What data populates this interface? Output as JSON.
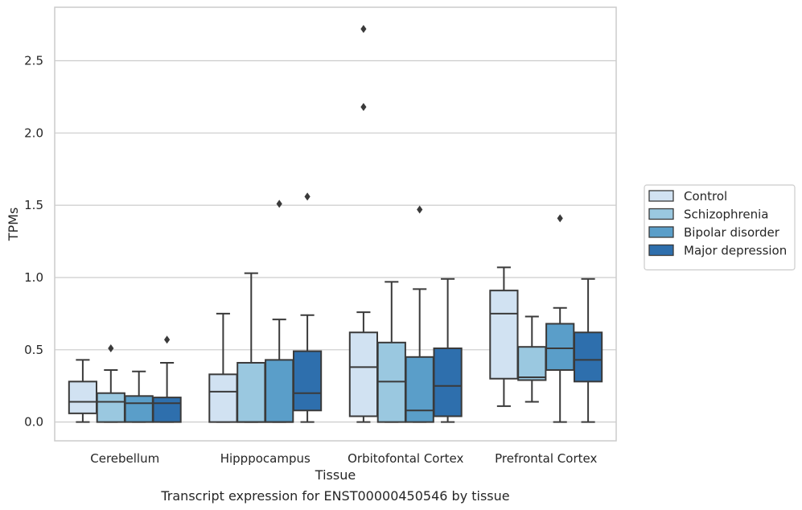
{
  "chart_data": {
    "type": "box",
    "xlabel": "Tissue",
    "ylabel": "TPMs",
    "caption": "Transcript expression for ENST00000450546 by tissue",
    "ylim": [
      -0.13,
      2.87
    ],
    "yticks": [
      0.0,
      0.5,
      1.0,
      1.5,
      2.0,
      2.5
    ],
    "ytick_labels": [
      "0.0",
      "0.5",
      "1.0",
      "1.5",
      "2.0",
      "2.5"
    ],
    "grid": "horizontal",
    "legend_position": "right",
    "categories": [
      "Cerebellum",
      "Hipppocampus",
      "Orbitofontal Cortex",
      "Prefrontal Cortex"
    ],
    "series": [
      {
        "name": "Control",
        "color": "#d1e2f2",
        "boxes": [
          {
            "whislo": 0.0,
            "q1": 0.06,
            "med": 0.14,
            "q3": 0.28,
            "whishi": 0.43,
            "fliers": []
          },
          {
            "whislo": 0.0,
            "q1": 0.0,
            "med": 0.21,
            "q3": 0.33,
            "whishi": 0.75,
            "fliers": []
          },
          {
            "whislo": 0.0,
            "q1": 0.04,
            "med": 0.38,
            "q3": 0.62,
            "whishi": 0.76,
            "fliers": [
              2.18,
              2.72
            ]
          },
          {
            "whislo": 0.11,
            "q1": 0.3,
            "med": 0.75,
            "q3": 0.91,
            "whishi": 1.07,
            "fliers": []
          }
        ]
      },
      {
        "name": "Schizophrenia",
        "color": "#9ac8e0",
        "boxes": [
          {
            "whislo": 0.0,
            "q1": 0.0,
            "med": 0.14,
            "q3": 0.2,
            "whishi": 0.36,
            "fliers": [
              0.51
            ]
          },
          {
            "whislo": 0.0,
            "q1": 0.0,
            "med": 0.0,
            "q3": 0.41,
            "whishi": 1.03,
            "fliers": []
          },
          {
            "whislo": 0.0,
            "q1": 0.0,
            "med": 0.28,
            "q3": 0.55,
            "whishi": 0.97,
            "fliers": []
          },
          {
            "whislo": 0.14,
            "q1": 0.29,
            "med": 0.31,
            "q3": 0.52,
            "whishi": 0.73,
            "fliers": []
          }
        ]
      },
      {
        "name": "Bipolar disorder",
        "color": "#5a9ec9",
        "boxes": [
          {
            "whislo": 0.0,
            "q1": 0.0,
            "med": 0.13,
            "q3": 0.18,
            "whishi": 0.35,
            "fliers": []
          },
          {
            "whislo": 0.0,
            "q1": 0.0,
            "med": 0.0,
            "q3": 0.43,
            "whishi": 0.71,
            "fliers": [
              1.51
            ]
          },
          {
            "whislo": 0.0,
            "q1": 0.0,
            "med": 0.08,
            "q3": 0.45,
            "whishi": 0.92,
            "fliers": [
              1.47
            ]
          },
          {
            "whislo": 0.0,
            "q1": 0.36,
            "med": 0.51,
            "q3": 0.68,
            "whishi": 0.79,
            "fliers": [
              1.41
            ]
          }
        ]
      },
      {
        "name": "Major depression",
        "color": "#2e6fad",
        "boxes": [
          {
            "whislo": 0.0,
            "q1": 0.0,
            "med": 0.13,
            "q3": 0.17,
            "whishi": 0.41,
            "fliers": [
              0.57
            ]
          },
          {
            "whislo": 0.0,
            "q1": 0.08,
            "med": 0.2,
            "q3": 0.49,
            "whishi": 0.74,
            "fliers": [
              1.56
            ]
          },
          {
            "whislo": 0.0,
            "q1": 0.04,
            "med": 0.25,
            "q3": 0.51,
            "whishi": 0.99,
            "fliers": []
          },
          {
            "whislo": 0.0,
            "q1": 0.28,
            "med": 0.43,
            "q3": 0.62,
            "whishi": 0.99,
            "fliers": []
          }
        ]
      }
    ]
  }
}
